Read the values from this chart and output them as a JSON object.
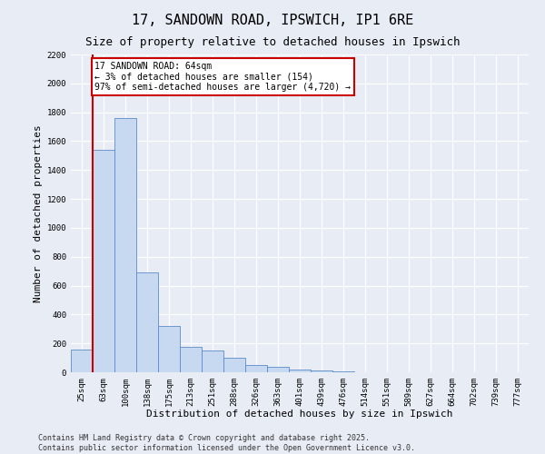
{
  "title": "17, SANDOWN ROAD, IPSWICH, IP1 6RE",
  "subtitle": "Size of property relative to detached houses in Ipswich",
  "xlabel": "Distribution of detached houses by size in Ipswich",
  "ylabel": "Number of detached properties",
  "categories": [
    "25sqm",
    "63sqm",
    "100sqm",
    "138sqm",
    "175sqm",
    "213sqm",
    "251sqm",
    "288sqm",
    "326sqm",
    "363sqm",
    "401sqm",
    "439sqm",
    "476sqm",
    "514sqm",
    "551sqm",
    "589sqm",
    "627sqm",
    "664sqm",
    "702sqm",
    "739sqm",
    "777sqm"
  ],
  "values": [
    160,
    1540,
    1760,
    690,
    320,
    175,
    150,
    100,
    50,
    35,
    20,
    10,
    5,
    3,
    1,
    0,
    0,
    0,
    0,
    0,
    0
  ],
  "bar_color": "#c6d9f0",
  "bar_edge_color": "#5b8bc9",
  "vline_x_index": 1,
  "vline_color": "#cc0000",
  "annotation_text": "17 SANDOWN ROAD: 64sqm\n← 3% of detached houses are smaller (154)\n97% of semi-detached houses are larger (4,720) →",
  "annotation_box_color": "#ffffff",
  "annotation_box_edge_color": "#cc0000",
  "ylim": [
    0,
    2200
  ],
  "yticks": [
    0,
    200,
    400,
    600,
    800,
    1000,
    1200,
    1400,
    1600,
    1800,
    2000,
    2200
  ],
  "footer_line1": "Contains HM Land Registry data © Crown copyright and database right 2025.",
  "footer_line2": "Contains public sector information licensed under the Open Government Licence v3.0.",
  "background_color": "#e8edf5",
  "plot_bg_color": "#e8edf5",
  "grid_color": "#ffffff",
  "title_fontsize": 11,
  "subtitle_fontsize": 9,
  "label_fontsize": 8,
  "tick_fontsize": 6.5,
  "footer_fontsize": 6,
  "annot_fontsize": 7
}
